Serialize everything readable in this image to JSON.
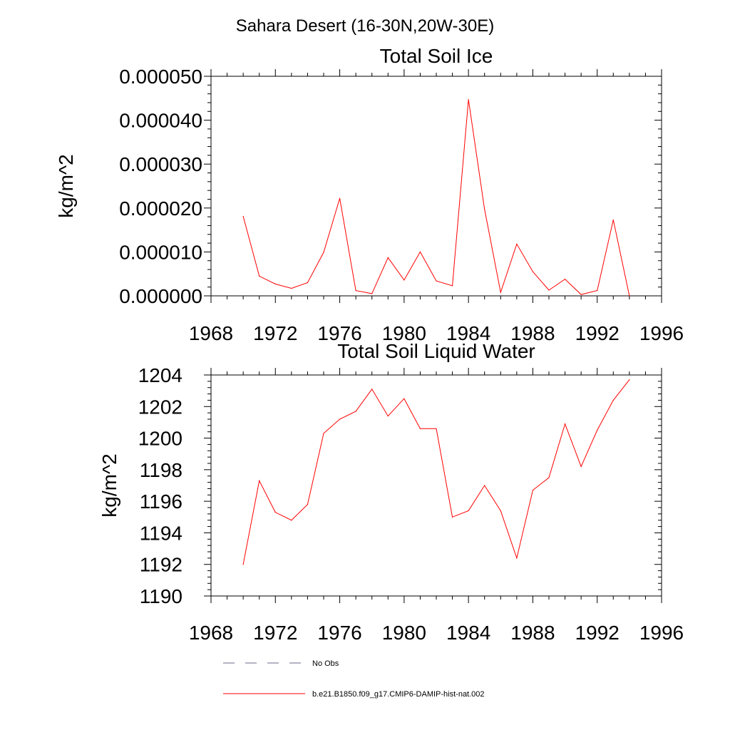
{
  "figure": {
    "title": "Sahara Desert (16-30N,20W-30E)"
  },
  "chart_data": [
    {
      "type": "line",
      "title": "Total Soil Ice",
      "xlabel": "",
      "ylabel": "kg/m^2",
      "xlim": [
        1968,
        1996
      ],
      "ylim": [
        0,
        5e-05
      ],
      "xticks": [
        1968,
        1972,
        1976,
        1980,
        1984,
        1988,
        1992,
        1996
      ],
      "xtick_labels": [
        "1968",
        "1972",
        "1976",
        "1980",
        "1984",
        "1988",
        "1992",
        "1996"
      ],
      "yticks": [
        0,
        1e-05,
        2e-05,
        3e-05,
        4e-05,
        5e-05
      ],
      "ytick_labels": [
        "0.000000",
        "0.000010",
        "0.000020",
        "0.000030",
        "0.000040",
        "0.000050"
      ],
      "grid": false,
      "x": [
        1970,
        1971,
        1972,
        1973,
        1974,
        1975,
        1976,
        1977,
        1978,
        1979,
        1980,
        1981,
        1982,
        1983,
        1984,
        1985,
        1986,
        1987,
        1988,
        1989,
        1990,
        1991,
        1992,
        1993,
        1994
      ],
      "series": [
        {
          "name": "b.e21.B1850.f09_g17.CMIP6-DAMIP-hist-nat.002",
          "color": "#ff0000",
          "values": [
            1.81e-05,
            4.5e-06,
            2.7e-06,
            1.7e-06,
            3e-06,
            9.9e-06,
            2.22e-05,
            1.2e-06,
            5e-07,
            8.7e-06,
            3.6e-06,
            1e-05,
            3.4e-06,
            2.3e-06,
            4.47e-05,
            1.97e-05,
            8e-07,
            1.18e-05,
            5.5e-06,
            1.3e-06,
            3.8e-06,
            3e-07,
            1.2e-06,
            1.73e-05,
            0.0
          ]
        }
      ]
    },
    {
      "type": "line",
      "title": "Total Soil Liquid Water",
      "xlabel": "",
      "ylabel": "kg/m^2",
      "xlim": [
        1968,
        1996
      ],
      "ylim": [
        1190,
        1204
      ],
      "xticks": [
        1968,
        1972,
        1976,
        1980,
        1984,
        1988,
        1992,
        1996
      ],
      "xtick_labels": [
        "1968",
        "1972",
        "1976",
        "1980",
        "1984",
        "1988",
        "1992",
        "1996"
      ],
      "yticks": [
        1190,
        1192,
        1194,
        1196,
        1198,
        1200,
        1202,
        1204
      ],
      "ytick_labels": [
        "1190",
        "1192",
        "1194",
        "1196",
        "1198",
        "1200",
        "1202",
        "1204"
      ],
      "grid": false,
      "x": [
        1970,
        1971,
        1972,
        1973,
        1974,
        1975,
        1976,
        1977,
        1978,
        1979,
        1980,
        1981,
        1982,
        1983,
        1984,
        1985,
        1986,
        1987,
        1988,
        1989,
        1990,
        1991,
        1992,
        1993,
        1994
      ],
      "series": [
        {
          "name": "b.e21.B1850.f09_g17.CMIP6-DAMIP-hist-nat.002",
          "color": "#ff0000",
          "values": [
            1192.0,
            1197.3,
            1195.3,
            1194.8,
            1195.8,
            1200.3,
            1201.2,
            1201.7,
            1203.1,
            1201.4,
            1202.5,
            1200.6,
            1200.6,
            1195.0,
            1195.4,
            1197.0,
            1195.4,
            1192.4,
            1196.7,
            1197.5,
            1200.9,
            1198.2,
            1200.5,
            1202.4,
            1203.7
          ]
        }
      ]
    }
  ],
  "legend": {
    "placement": "bottom",
    "items": [
      {
        "label": "No Obs",
        "style": "dashed",
        "color": "#6a6a8a"
      },
      {
        "label": "b.e21.B1850.f09_g17.CMIP6-DAMIP-hist-nat.002",
        "style": "solid",
        "color": "#ff0000"
      }
    ]
  }
}
